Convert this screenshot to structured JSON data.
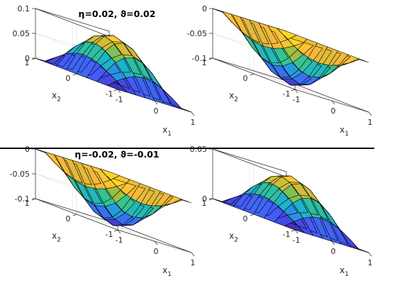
{
  "chart_data": [
    {
      "type": "surface",
      "title": "η=0.02, ϑ=0.02",
      "amplitude": 0.1,
      "surface": "z = amplitude · cos(π·x1/2) · cos(π·x2/2)",
      "x1_ticks": [
        "-1",
        "0",
        "1"
      ],
      "x2_ticks": [
        "-1",
        "0",
        "1"
      ],
      "z_ticks": [
        {
          "value": 0,
          "label": "0"
        },
        {
          "value": 0.05,
          "label": "0.05"
        },
        {
          "value": 0.1,
          "label": "0.1"
        }
      ],
      "zlim": [
        0,
        0.1
      ],
      "xlabel": "x",
      "xlabel_sub": "1",
      "ylabel": "x",
      "ylabel_sub": "2"
    },
    {
      "type": "surface",
      "title": "",
      "amplitude": -0.1,
      "surface": "z = amplitude · cos(π·x1/2) · cos(π·x2/2)",
      "x1_ticks": [
        "-1",
        "0",
        "1"
      ],
      "x2_ticks": [
        "-1",
        "0",
        "1"
      ],
      "z_ticks": [
        {
          "value": -0.1,
          "label": "-0.1"
        },
        {
          "value": -0.05,
          "label": "-0.05"
        },
        {
          "value": 0,
          "label": "0"
        }
      ],
      "zlim": [
        -0.1,
        0
      ],
      "xlabel": "x",
      "xlabel_sub": "1",
      "ylabel": "x",
      "ylabel_sub": "2"
    },
    {
      "type": "surface",
      "title": "η=-0.02, ϑ=-0.01",
      "amplitude": -0.1,
      "surface": "z = amplitude · cos(π·x1/2) · cos(π·x2/2)",
      "x1_ticks": [
        "-1",
        "0",
        "1"
      ],
      "x2_ticks": [
        "-1",
        "0",
        "1"
      ],
      "z_ticks": [
        {
          "value": -0.1,
          "label": "-0.1"
        },
        {
          "value": -0.05,
          "label": "-0.05"
        },
        {
          "value": 0,
          "label": "0"
        }
      ],
      "zlim": [
        -0.1,
        0
      ],
      "xlabel": "x",
      "xlabel_sub": "1",
      "ylabel": "x",
      "ylabel_sub": "2"
    },
    {
      "type": "surface",
      "title": "",
      "amplitude": 0.05,
      "surface": "z = amplitude · cos(π·x1/2) · cos(π·x2/2)",
      "x1_ticks": [
        "-1",
        "0",
        "1"
      ],
      "x2_ticks": [
        "-1",
        "0",
        "1"
      ],
      "z_ticks": [
        {
          "value": 0,
          "label": "0"
        },
        {
          "value": 0.05,
          "label": "0.05"
        }
      ],
      "zlim": [
        0,
        0.05
      ],
      "xlabel": "x",
      "xlabel_sub": "1",
      "ylabel": "x",
      "ylabel_sub": "2"
    }
  ],
  "colormap": [
    "#3e26a8",
    "#4756fa",
    "#2a8ee6",
    "#1bb1cf",
    "#39c58a",
    "#a5be3c",
    "#fcb93b",
    "#f9e01f"
  ],
  "divider_color": "#000000"
}
